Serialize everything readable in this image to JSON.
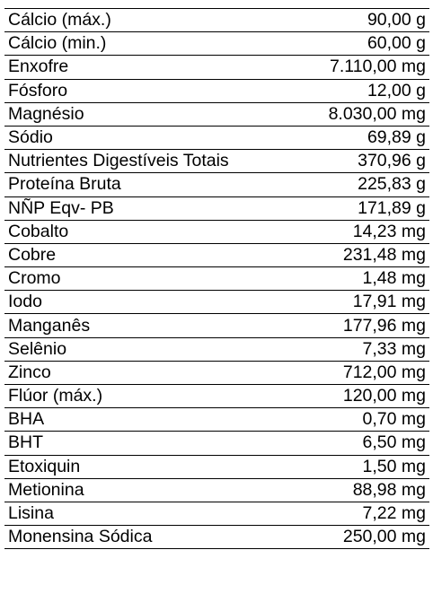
{
  "table": {
    "rows": [
      {
        "name": "Cálcio (máx.)",
        "value": "90,00 g"
      },
      {
        "name": "Cálcio (min.)",
        "value": "60,00 g"
      },
      {
        "name": "Enxofre",
        "value": "7.110,00 mg"
      },
      {
        "name": "Fósforo",
        "value": "12,00 g"
      },
      {
        "name": "Magnésio",
        "value": "8.030,00 mg"
      },
      {
        "name": "Sódio",
        "value": "69,89 g"
      },
      {
        "name": "Nutrientes Digestíveis Totais",
        "value": "370,96 g"
      },
      {
        "name": "Proteína Bruta",
        "value": "225,83 g"
      },
      {
        "name": "NÑP Eqv- PB",
        "value": "171,89 g"
      },
      {
        "name": "Cobalto",
        "value": "14,23 mg"
      },
      {
        "name": "Cobre",
        "value": "231,48 mg"
      },
      {
        "name": "Cromo",
        "value": "1,48 mg"
      },
      {
        "name": "Iodo",
        "value": "17,91 mg"
      },
      {
        "name": "Manganês",
        "value": "177,96 mg"
      },
      {
        "name": "Selênio",
        "value": "7,33 mg"
      },
      {
        "name": "Zinco",
        "value": "712,00 mg"
      },
      {
        "name": "Flúor (máx.)",
        "value": "120,00 mg"
      },
      {
        "name": "BHA",
        "value": "0,70 mg"
      },
      {
        "name": "BHT",
        "value": "6,50 mg"
      },
      {
        "name": "Etoxiquin",
        "value": "1,50 mg"
      },
      {
        "name": "Metionina",
        "value": "88,98 mg"
      },
      {
        "name": "Lisina",
        "value": "7,22 mg"
      },
      {
        "name": "Monensina Sódica",
        "value": "250,00 mg"
      }
    ]
  }
}
